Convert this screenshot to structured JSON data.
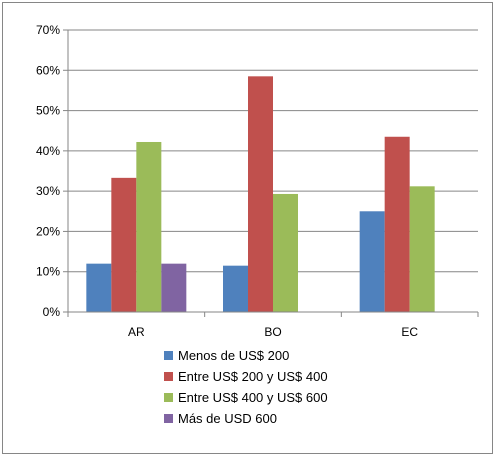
{
  "chart_data": {
    "type": "bar",
    "categories": [
      "AR",
      "BO",
      "EC"
    ],
    "ylim": [
      0,
      70
    ],
    "yticks": [
      0,
      10,
      20,
      30,
      40,
      50,
      60,
      70
    ],
    "ytick_labels": [
      "0%",
      "10%",
      "20%",
      "30%",
      "40%",
      "50%",
      "60%",
      "70%"
    ],
    "series": [
      {
        "name": "Menos de US$ 200",
        "color": "#4f81bd",
        "values": [
          12,
          11.5,
          25
        ]
      },
      {
        "name": "Entre US$ 200 y US$ 400",
        "color": "#c0504d",
        "values": [
          33.3,
          58.5,
          43.5
        ]
      },
      {
        "name": "Entre US$ 400 y US$ 600",
        "color": "#9bbb59",
        "values": [
          42.2,
          29.3,
          31.2
        ]
      },
      {
        "name": "Más de USD 600",
        "color": "#8064a2",
        "values": [
          12,
          0,
          0
        ]
      }
    ],
    "grid": true,
    "gridline_color": "#868686",
    "legend_position": "bottom",
    "title": "",
    "xlabel": "",
    "ylabel": ""
  }
}
